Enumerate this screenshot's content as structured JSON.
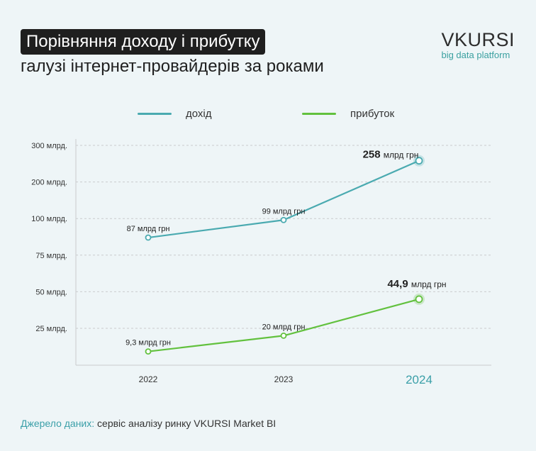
{
  "header": {
    "title_line1": "Порівняння доходу і прибутку",
    "title_line2": "галузі інтернет-провайдерів за роками"
  },
  "brand": {
    "name": "VKURSI",
    "subtitle": "big data platform"
  },
  "colors": {
    "revenue": "#4aaab0",
    "profit": "#62c13e",
    "highlight_year": "#3a9fa8",
    "grid": "#c9ccce"
  },
  "chart_data": {
    "type": "line",
    "categories": [
      "2022",
      "2023",
      "2024"
    ],
    "highlight_category": "2024",
    "y_ticks": [
      "25 млрд.",
      "50 млрд.",
      "75 млрд.",
      "100 млрд.",
      "200 млрд.",
      "300 млрд."
    ],
    "y_tick_values": [
      25,
      50,
      75,
      100,
      200,
      300
    ],
    "y_scale_note": "piecewise: ticks equally spaced",
    "series": [
      {
        "name": "дохід",
        "values": [
          87,
          99,
          258
        ],
        "labels": [
          "87 млрд грн",
          "99 млрд грн",
          "258 млрд грн"
        ],
        "label_number": [
          "87",
          "99",
          "258"
        ],
        "label_unit": [
          "млрд грн",
          "млрд грн",
          "млрд грн"
        ]
      },
      {
        "name": "прибуток",
        "values": [
          9.3,
          20,
          44.9
        ],
        "labels": [
          "9,3 млрд грн",
          "20 млрд грн",
          "44,9 млрд грн"
        ],
        "label_number": [
          "9,3",
          "20",
          "44,9"
        ],
        "label_unit": [
          "млрд грн",
          "млрд грн",
          "млрд грн"
        ]
      }
    ]
  },
  "legend": {
    "revenue_label": "дохід",
    "profit_label": "прибуток"
  },
  "source": {
    "label": "Джерело даних:",
    "text": " сервіс аналізу ринку VKURSI Market BI"
  }
}
